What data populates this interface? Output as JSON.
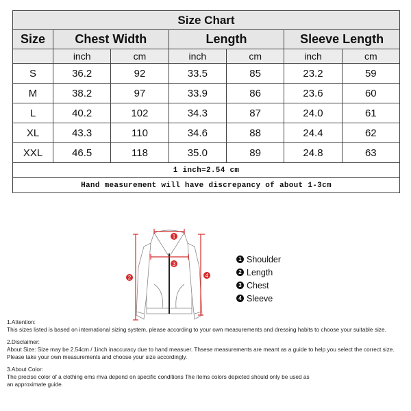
{
  "title": "Size Chart",
  "headers": [
    "Size",
    "Chest Width",
    "Length",
    "Sleeve Length"
  ],
  "units": [
    "inch",
    "cm",
    "inch",
    "cm",
    "inch",
    "cm"
  ],
  "rows": [
    [
      "S",
      "36.2",
      "92",
      "33.5",
      "85",
      "23.2",
      "59"
    ],
    [
      "M",
      "38.2",
      "97",
      "33.9",
      "86",
      "23.6",
      "60"
    ],
    [
      "L",
      "40.2",
      "102",
      "34.3",
      "87",
      "24.0",
      "61"
    ],
    [
      "XL",
      "43.3",
      "110",
      "34.6",
      "88",
      "24.4",
      "62"
    ],
    [
      "XXL",
      "46.5",
      "118",
      "35.0",
      "89",
      "24.8",
      "63"
    ]
  ],
  "conversion_note": "1 inch=2.54 cm",
  "measurement_note": "Hand measurement will have discrepancy of about 1-3cm",
  "diagram": {
    "marker_color": "#d42a2a",
    "markers": [
      "1",
      "2",
      "3",
      "4"
    ]
  },
  "legend": [
    {
      "num": "1",
      "label": "Shoulder"
    },
    {
      "num": "2",
      "label": "Length"
    },
    {
      "num": "3",
      "label": "Chest"
    },
    {
      "num": "4",
      "label": "Sleeve"
    }
  ],
  "notes": [
    {
      "heading": "1.Attention:",
      "lines": [
        "This sizes listed is based on international sizing system, please according to your own measurements and dressing habits to choose your suitable size."
      ]
    },
    {
      "heading": "2.Disclaimer:",
      "lines": [
        "About Size: Size may be 2.54cm / 1inch inaccuracy due to hand measuer. Thsese measurements are meant as a guide to help you select the correct size.",
        "Please take your own measurements and choose your size accordingly."
      ]
    },
    {
      "heading": "3.About Color:",
      "lines": [
        "The precise color of a clothing ems mva depend on specific conditions The items colors depicted should only be used as",
        "an approximate guide."
      ]
    }
  ]
}
